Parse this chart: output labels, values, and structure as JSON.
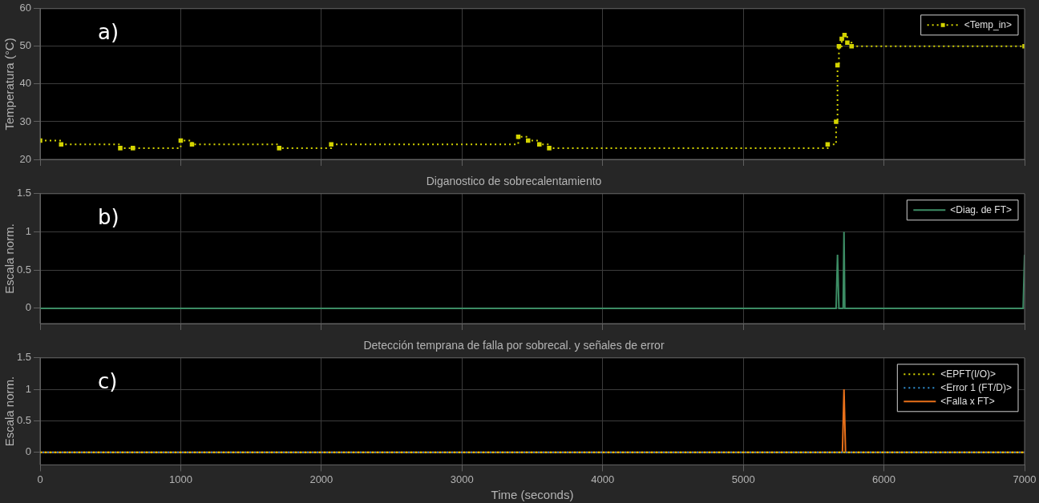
{
  "chart_data": [
    {
      "type": "step",
      "annotations": [
        "a)"
      ],
      "ylabel": "Temperatura (°C)",
      "xlim": [
        0,
        7000
      ],
      "xticks": [
        0,
        1000,
        2000,
        3000,
        4000,
        5000,
        6000,
        7000
      ],
      "ylim": [
        20,
        60
      ],
      "yticks": [
        20,
        30,
        40,
        50,
        60
      ],
      "grid": true,
      "legend": "top right",
      "tick_labels": "y",
      "marker": "square",
      "line_style": "dotted",
      "series": [
        {
          "name": "<Temp_in>",
          "color": "#d4d400",
          "x": [
            0,
            150,
            570,
            660,
            1000,
            1080,
            1700,
            2070,
            3400,
            3470,
            3550,
            3620,
            5600,
            5660,
            5670,
            5680,
            5700,
            5720,
            5740,
            5770,
            7000
          ],
          "values": [
            25,
            24,
            23,
            23,
            25,
            24,
            23,
            24,
            26,
            25,
            24,
            23,
            24,
            30,
            45,
            50,
            52,
            53,
            51,
            50,
            50
          ]
        }
      ]
    },
    {
      "type": "line",
      "title": "Diganostico de sobrecalentamiento",
      "annotations": [
        "b)"
      ],
      "ylabel": "Escala norm.",
      "xlim": [
        0,
        7000
      ],
      "xticks": [
        0,
        1000,
        2000,
        3000,
        4000,
        5000,
        6000,
        7000
      ],
      "ylim": [
        -0.2,
        1.5
      ],
      "yticks": [
        0,
        0.5,
        1,
        1.5
      ],
      "grid": true,
      "legend": "top right",
      "tick_labels": "y",
      "series": [
        {
          "name": "<Diag. de FT>",
          "color": "#3c8c64",
          "x": [
            0,
            5660,
            5670,
            5680,
            5710,
            5716,
            5722,
            6990,
            7000
          ],
          "values": [
            0,
            0,
            0.7,
            0,
            0,
            1,
            0,
            0,
            0.7
          ]
        }
      ]
    },
    {
      "type": "line",
      "title": "Detección temprana de falla por sobrecal. y señales de error",
      "annotations": [
        "c)"
      ],
      "xlabel": "Time (seconds)",
      "ylabel": "Escala norm.",
      "xlim": [
        0,
        7000
      ],
      "xticks": [
        0,
        1000,
        2000,
        3000,
        4000,
        5000,
        6000,
        7000
      ],
      "ylim": [
        -0.2,
        1.5
      ],
      "yticks": [
        0,
        0.5,
        1,
        1.5
      ],
      "grid": true,
      "legend": "top right",
      "series": [
        {
          "name": "<EPFT(I/O)>",
          "color": "#d4d400",
          "line_style": "dotted",
          "x": [
            0,
            7000
          ],
          "values": [
            0,
            0
          ]
        },
        {
          "name": "<Error 1 (FT/D)>",
          "color": "#2f8fd0",
          "line_style": "dotted",
          "x": [
            0,
            7000
          ],
          "values": [
            0,
            0
          ]
        },
        {
          "name": "<Falla x FT>",
          "color": "#e8701a",
          "line_style": "solid",
          "x": [
            0,
            5705,
            5716,
            5727,
            7000
          ],
          "values": [
            0,
            0,
            1,
            0,
            0
          ]
        }
      ]
    }
  ]
}
